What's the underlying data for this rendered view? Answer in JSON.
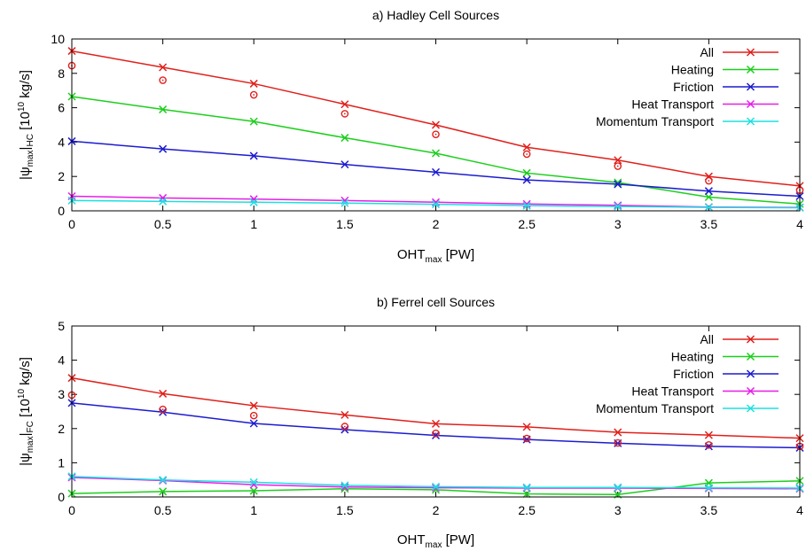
{
  "chart_data": [
    {
      "type": "line",
      "title": "a) Hadley Cell Sources",
      "xlabel": {
        "main": "OHT",
        "sub": "max",
        "rest": " [PW]"
      },
      "ylabel": {
        "pre": "|ψ",
        "sub1": "max",
        "mid": "|",
        "sub2": "HC",
        "rest": " [10",
        "sup": "10",
        "end": " kg/s]"
      },
      "xlim": [
        0,
        4
      ],
      "ylim": [
        0,
        10
      ],
      "xticks": [
        0,
        0.5,
        1,
        1.5,
        2,
        2.5,
        3,
        3.5,
        4
      ],
      "yticks": [
        0,
        2,
        4,
        6,
        8,
        10
      ],
      "x": [
        0,
        0.5,
        1,
        1.5,
        2,
        2.5,
        3,
        3.5,
        4
      ],
      "legend_position": "top-right",
      "series": [
        {
          "name": "All",
          "color": "#e0201b",
          "values": [
            9.3,
            8.35,
            7.4,
            6.2,
            5.0,
            3.7,
            2.95,
            2.0,
            1.45
          ]
        },
        {
          "name": "Heating",
          "color": "#1ccf1c",
          "values": [
            6.65,
            5.9,
            5.2,
            4.25,
            3.35,
            2.2,
            1.65,
            0.8,
            0.4
          ]
        },
        {
          "name": "Friction",
          "color": "#1c1ccf",
          "values": [
            4.05,
            3.6,
            3.2,
            2.7,
            2.25,
            1.8,
            1.55,
            1.15,
            0.85
          ]
        },
        {
          "name": "Heat Transport",
          "color": "#e81ce8",
          "values": [
            0.85,
            0.75,
            0.68,
            0.6,
            0.5,
            0.4,
            0.32,
            0.22,
            0.2
          ]
        },
        {
          "name": "Momentum Transport",
          "color": "#1ce0e0",
          "values": [
            0.6,
            0.55,
            0.5,
            0.45,
            0.38,
            0.3,
            0.25,
            0.2,
            0.18
          ]
        }
      ],
      "circle_series": {
        "color": "#e0201b",
        "values": [
          8.45,
          7.6,
          6.75,
          5.65,
          4.45,
          3.3,
          2.6,
          1.75,
          1.2
        ]
      }
    },
    {
      "type": "line",
      "title": "b) Ferrel cell Sources",
      "xlabel": {
        "main": "OHT",
        "sub": "max",
        "rest": " [PW]"
      },
      "ylabel": {
        "pre": "|ψ",
        "sub1": "max",
        "mid": "|",
        "sub2": "FC",
        "rest": " [10",
        "sup": "10",
        "end": " kg/s]"
      },
      "xlim": [
        0,
        4
      ],
      "ylim": [
        0,
        5
      ],
      "xticks": [
        0,
        0.5,
        1,
        1.5,
        2,
        2.5,
        3,
        3.5,
        4
      ],
      "yticks": [
        0,
        1,
        2,
        3,
        4,
        5
      ],
      "x": [
        0,
        0.5,
        1,
        1.5,
        2,
        2.5,
        3,
        3.5,
        4
      ],
      "legend_position": "top-right",
      "series": [
        {
          "name": "All",
          "color": "#e0201b",
          "values": [
            3.48,
            3.02,
            2.67,
            2.4,
            2.14,
            2.05,
            1.89,
            1.81,
            1.72
          ]
        },
        {
          "name": "Heating",
          "color": "#1ccf1c",
          "values": [
            0.1,
            0.16,
            0.18,
            0.24,
            0.21,
            0.09,
            0.07,
            0.41,
            0.47
          ]
        },
        {
          "name": "Friction",
          "color": "#1c1ccf",
          "values": [
            2.75,
            2.48,
            2.15,
            1.97,
            1.8,
            1.68,
            1.57,
            1.48,
            1.44
          ]
        },
        {
          "name": "Heat Transport",
          "color": "#e81ce8",
          "values": [
            0.57,
            0.48,
            0.36,
            0.29,
            0.27,
            0.26,
            0.26,
            0.25,
            0.24
          ]
        },
        {
          "name": "Momentum Transport",
          "color": "#1ce0e0",
          "values": [
            0.6,
            0.5,
            0.43,
            0.34,
            0.3,
            0.28,
            0.28,
            0.27,
            0.26
          ]
        }
      ],
      "circle_series": {
        "color": "#e0201b",
        "values": [
          2.98,
          2.56,
          2.38,
          2.06,
          1.86,
          1.71,
          1.58,
          1.52,
          1.48
        ]
      }
    }
  ]
}
